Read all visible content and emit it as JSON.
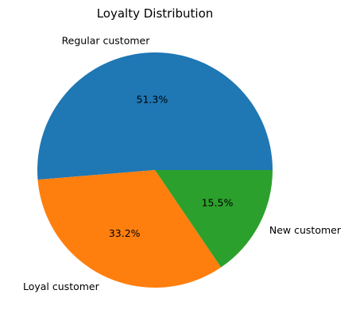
{
  "chart_data": {
    "type": "pie",
    "title": "Loyalty Distribution",
    "slices": [
      {
        "label": "Regular customer",
        "value": 51.3,
        "pct_label": "51.3%",
        "color": "#1f77b4"
      },
      {
        "label": "Loyal customer",
        "value": 33.2,
        "pct_label": "33.2%",
        "color": "#ff7f0e"
      },
      {
        "label": "New customer",
        "value": 15.5,
        "pct_label": "15.5%",
        "color": "#2ca02c"
      }
    ],
    "start_angle_deg": 0,
    "direction": "counterclockwise",
    "legend": "none"
  }
}
